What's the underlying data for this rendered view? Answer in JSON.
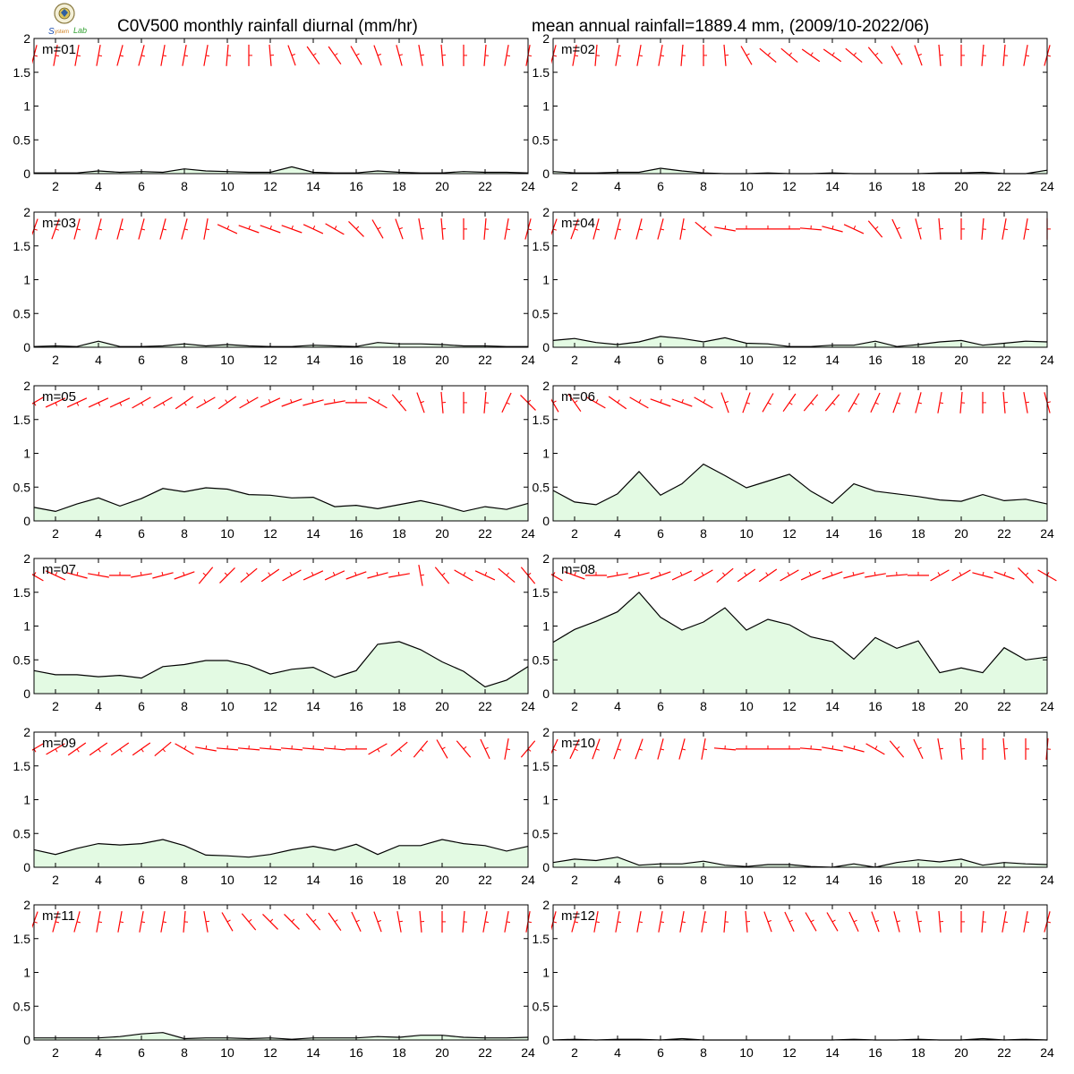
{
  "header": {
    "title_left": "C0V500 monthly rainfall diurnal (mm/hr)",
    "title_right": "mean annual rainfall=1889.4 mm, (2009/10-2022/06)",
    "logo_text": "Lab"
  },
  "colors": {
    "rain_line": "#000000",
    "rain_fill": "#e3fae3",
    "wind_barb": "#ff0000",
    "axis": "#000000"
  },
  "chart_data": [
    {
      "type": "area",
      "label": "m=01",
      "x": [
        1,
        2,
        3,
        4,
        5,
        6,
        7,
        8,
        9,
        10,
        11,
        12,
        13,
        14,
        15,
        16,
        17,
        18,
        19,
        20,
        21,
        22,
        23,
        24
      ],
      "values": [
        0.01,
        0.01,
        0.01,
        0.04,
        0.02,
        0.03,
        0.02,
        0.07,
        0.04,
        0.03,
        0.02,
        0.02,
        0.1,
        0.02,
        0.01,
        0.01,
        0.04,
        0.02,
        0.01,
        0.01,
        0.03,
        0.02,
        0.02,
        0.01
      ],
      "ylim": [
        0,
        2
      ],
      "xlim": [
        1,
        24
      ],
      "xticks": [
        2,
        4,
        6,
        8,
        10,
        12,
        14,
        16,
        18,
        20,
        22,
        24
      ],
      "yticks": [
        0,
        0.5,
        1,
        1.5,
        2
      ],
      "wind_dir": [
        15,
        10,
        10,
        10,
        15,
        15,
        10,
        10,
        10,
        5,
        0,
        355,
        340,
        325,
        325,
        330,
        340,
        345,
        350,
        355,
        0,
        5,
        10,
        10
      ]
    },
    {
      "type": "area",
      "label": "m=02",
      "x": [
        1,
        2,
        3,
        4,
        5,
        6,
        7,
        8,
        9,
        10,
        11,
        12,
        13,
        14,
        15,
        16,
        17,
        18,
        19,
        20,
        21,
        22,
        23,
        24
      ],
      "values": [
        0.03,
        0.01,
        0.01,
        0.02,
        0.02,
        0.08,
        0.04,
        0.01,
        0.0,
        0.0,
        0.01,
        0.0,
        0.0,
        0.01,
        0.0,
        0.0,
        0.0,
        0.0,
        0.01,
        0.01,
        0.02,
        0.0,
        0.0,
        0.05
      ],
      "ylim": [
        0,
        2
      ],
      "xlim": [
        1,
        24
      ],
      "xticks": [
        2,
        4,
        6,
        8,
        10,
        12,
        14,
        16,
        18,
        20,
        22,
        24
      ],
      "yticks": [
        0,
        0.5,
        1,
        1.5,
        2
      ],
      "wind_dir": [
        15,
        10,
        5,
        10,
        10,
        10,
        5,
        0,
        355,
        330,
        310,
        310,
        305,
        305,
        310,
        320,
        330,
        340,
        355,
        0,
        5,
        5,
        10,
        15
      ]
    },
    {
      "type": "area",
      "label": "m=03",
      "x": [
        1,
        2,
        3,
        4,
        5,
        6,
        7,
        8,
        9,
        10,
        11,
        12,
        13,
        14,
        15,
        16,
        17,
        18,
        19,
        20,
        21,
        22,
        23,
        24
      ],
      "values": [
        0.01,
        0.02,
        0.01,
        0.09,
        0.01,
        0.01,
        0.02,
        0.05,
        0.02,
        0.04,
        0.02,
        0.01,
        0.01,
        0.03,
        0.02,
        0.01,
        0.07,
        0.05,
        0.05,
        0.04,
        0.02,
        0.02,
        0.01,
        0.01
      ],
      "ylim": [
        0,
        2
      ],
      "xlim": [
        1,
        24
      ],
      "xticks": [
        2,
        4,
        6,
        8,
        10,
        12,
        14,
        16,
        18,
        20,
        22,
        24
      ],
      "yticks": [
        0,
        0.5,
        1,
        1.5,
        2
      ],
      "wind_dir": [
        20,
        20,
        15,
        15,
        15,
        15,
        15,
        15,
        10,
        295,
        290,
        290,
        290,
        295,
        300,
        315,
        330,
        340,
        350,
        355,
        0,
        5,
        10,
        15
      ]
    },
    {
      "type": "area",
      "label": "m=04",
      "x": [
        1,
        2,
        3,
        4,
        5,
        6,
        7,
        8,
        9,
        10,
        11,
        12,
        13,
        14,
        15,
        16,
        17,
        18,
        19,
        20,
        21,
        22,
        23,
        24
      ],
      "values": [
        0.1,
        0.13,
        0.07,
        0.04,
        0.08,
        0.16,
        0.13,
        0.08,
        0.14,
        0.06,
        0.05,
        0.01,
        0.01,
        0.03,
        0.03,
        0.09,
        0.01,
        0.04,
        0.08,
        0.1,
        0.03,
        0.06,
        0.09,
        0.08
      ],
      "ylim": [
        0,
        2
      ],
      "xlim": [
        1,
        24
      ],
      "xticks": [
        2,
        4,
        6,
        8,
        10,
        12,
        14,
        16,
        18,
        20,
        22,
        24
      ],
      "yticks": [
        0,
        0.5,
        1,
        1.5,
        2
      ],
      "wind_dir": [
        20,
        20,
        15,
        15,
        15,
        15,
        10,
        310,
        280,
        270,
        270,
        270,
        275,
        285,
        295,
        320,
        335,
        345,
        355,
        0,
        5,
        10,
        10,
        0
      ]
    },
    {
      "type": "area",
      "label": "m=05",
      "x": [
        1,
        2,
        3,
        4,
        5,
        6,
        7,
        8,
        9,
        10,
        11,
        12,
        13,
        14,
        15,
        16,
        17,
        18,
        19,
        20,
        21,
        22,
        23,
        24
      ],
      "values": [
        0.2,
        0.14,
        0.25,
        0.34,
        0.22,
        0.33,
        0.48,
        0.43,
        0.49,
        0.47,
        0.39,
        0.38,
        0.34,
        0.35,
        0.21,
        0.23,
        0.18,
        0.24,
        0.3,
        0.23,
        0.14,
        0.21,
        0.17,
        0.26
      ],
      "ylim": [
        0,
        2
      ],
      "xlim": [
        1,
        24
      ],
      "xticks": [
        2,
        4,
        6,
        8,
        10,
        12,
        14,
        16,
        18,
        20,
        22,
        24
      ],
      "yticks": [
        0,
        0.5,
        1,
        1.5,
        2
      ],
      "wind_dir": [
        60,
        65,
        65,
        65,
        65,
        60,
        60,
        55,
        240,
        235,
        240,
        245,
        250,
        255,
        260,
        270,
        300,
        320,
        340,
        355,
        360,
        5,
        25,
        315
      ]
    },
    {
      "type": "area",
      "label": "m=06",
      "x": [
        1,
        2,
        3,
        4,
        5,
        6,
        7,
        8,
        9,
        10,
        11,
        12,
        13,
        14,
        15,
        16,
        17,
        18,
        19,
        20,
        21,
        22,
        23,
        24
      ],
      "values": [
        0.45,
        0.28,
        0.24,
        0.4,
        0.73,
        0.38,
        0.55,
        0.84,
        0.67,
        0.49,
        0.59,
        0.69,
        0.44,
        0.26,
        0.55,
        0.44,
        0.4,
        0.36,
        0.31,
        0.29,
        0.39,
        0.3,
        0.32,
        0.25
      ],
      "ylim": [
        0,
        2
      ],
      "xlim": [
        1,
        24
      ],
      "xticks": [
        2,
        4,
        6,
        8,
        10,
        12,
        14,
        16,
        18,
        20,
        22,
        24
      ],
      "yticks": [
        0,
        0.5,
        1,
        1.5,
        2
      ],
      "wind_dir": [
        330,
        325,
        300,
        305,
        300,
        290,
        290,
        300,
        340,
        20,
        30,
        35,
        40,
        40,
        30,
        25,
        20,
        15,
        10,
        5,
        0,
        355,
        350,
        345
      ]
    },
    {
      "type": "area",
      "label": "m=07",
      "x": [
        1,
        2,
        3,
        4,
        5,
        6,
        7,
        8,
        9,
        10,
        11,
        12,
        13,
        14,
        15,
        16,
        17,
        18,
        19,
        20,
        21,
        22,
        23,
        24
      ],
      "values": [
        0.34,
        0.28,
        0.28,
        0.25,
        0.27,
        0.23,
        0.4,
        0.43,
        0.49,
        0.49,
        0.42,
        0.29,
        0.36,
        0.39,
        0.24,
        0.34,
        0.73,
        0.77,
        0.65,
        0.47,
        0.33,
        0.1,
        0.2,
        0.4
      ],
      "ylim": [
        0,
        2
      ],
      "xlim": [
        1,
        24
      ],
      "xticks": [
        2,
        4,
        6,
        8,
        10,
        12,
        14,
        16,
        18,
        20,
        22,
        24
      ],
      "yticks": [
        0,
        0.5,
        1,
        1.5,
        2
      ],
      "wind_dir": [
        300,
        295,
        285,
        280,
        270,
        260,
        255,
        250,
        220,
        225,
        230,
        235,
        240,
        245,
        245,
        250,
        255,
        260,
        350,
        320,
        300,
        295,
        310,
        320
      ]
    },
    {
      "type": "area",
      "label": "m=08",
      "x": [
        1,
        2,
        3,
        4,
        5,
        6,
        7,
        8,
        9,
        10,
        11,
        12,
        13,
        14,
        15,
        16,
        17,
        18,
        19,
        20,
        21,
        22,
        23,
        24
      ],
      "values": [
        0.76,
        0.95,
        1.07,
        1.21,
        1.5,
        1.13,
        0.94,
        1.06,
        1.27,
        0.94,
        1.1,
        1.02,
        0.84,
        0.77,
        0.51,
        0.83,
        0.67,
        0.78,
        0.31,
        0.38,
        0.31,
        0.68,
        0.5,
        0.54
      ],
      "ylim": [
        0,
        2
      ],
      "xlim": [
        1,
        24
      ],
      "xticks": [
        2,
        4,
        6,
        8,
        10,
        12,
        14,
        16,
        18,
        20,
        22,
        24
      ],
      "yticks": [
        0,
        0.5,
        1,
        1.5,
        2
      ],
      "wind_dir": [
        300,
        290,
        270,
        260,
        255,
        250,
        245,
        240,
        230,
        235,
        235,
        240,
        245,
        250,
        255,
        260,
        265,
        270,
        240,
        240,
        285,
        290,
        315,
        300
      ]
    },
    {
      "type": "area",
      "label": "m=09",
      "x": [
        1,
        2,
        3,
        4,
        5,
        6,
        7,
        8,
        9,
        10,
        11,
        12,
        13,
        14,
        15,
        16,
        17,
        18,
        19,
        20,
        21,
        22,
        23,
        24
      ],
      "values": [
        0.26,
        0.19,
        0.28,
        0.35,
        0.33,
        0.35,
        0.41,
        0.32,
        0.18,
        0.17,
        0.15,
        0.19,
        0.26,
        0.31,
        0.25,
        0.34,
        0.19,
        0.32,
        0.32,
        0.41,
        0.35,
        0.32,
        0.24,
        0.31
      ],
      "ylim": [
        0,
        2
      ],
      "xlim": [
        1,
        24
      ],
      "xticks": [
        2,
        4,
        6,
        8,
        10,
        12,
        14,
        16,
        18,
        20,
        22,
        24
      ],
      "yticks": [
        0,
        0.5,
        1,
        1.5,
        2
      ],
      "wind_dir": [
        60,
        60,
        55,
        55,
        55,
        55,
        50,
        300,
        280,
        275,
        275,
        275,
        275,
        275,
        275,
        270,
        60,
        50,
        40,
        330,
        320,
        335,
        10,
        40
      ]
    },
    {
      "type": "area",
      "label": "m=10",
      "x": [
        1,
        2,
        3,
        4,
        5,
        6,
        7,
        8,
        9,
        10,
        11,
        12,
        13,
        14,
        15,
        16,
        17,
        18,
        19,
        20,
        21,
        22,
        23,
        24
      ],
      "values": [
        0.07,
        0.12,
        0.1,
        0.15,
        0.03,
        0.05,
        0.05,
        0.09,
        0.03,
        0.01,
        0.04,
        0.04,
        0.01,
        0.0,
        0.05,
        0.0,
        0.07,
        0.11,
        0.08,
        0.12,
        0.03,
        0.07,
        0.05,
        0.04
      ],
      "ylim": [
        0,
        2
      ],
      "xlim": [
        1,
        24
      ],
      "xticks": [
        2,
        4,
        6,
        8,
        10,
        12,
        14,
        16,
        18,
        20,
        22,
        24
      ],
      "yticks": [
        0,
        0.5,
        1,
        1.5,
        2
      ],
      "wind_dir": [
        25,
        25,
        20,
        20,
        20,
        15,
        15,
        10,
        275,
        270,
        270,
        270,
        275,
        280,
        285,
        300,
        320,
        335,
        350,
        355,
        0,
        355,
        0,
        5
      ]
    },
    {
      "type": "area",
      "label": "m=11",
      "x": [
        1,
        2,
        3,
        4,
        5,
        6,
        7,
        8,
        9,
        10,
        11,
        12,
        13,
        14,
        15,
        16,
        17,
        18,
        19,
        20,
        21,
        22,
        23,
        24
      ],
      "values": [
        0.03,
        0.03,
        0.03,
        0.03,
        0.05,
        0.09,
        0.11,
        0.02,
        0.03,
        0.03,
        0.02,
        0.03,
        0.01,
        0.03,
        0.03,
        0.03,
        0.05,
        0.04,
        0.07,
        0.07,
        0.04,
        0.03,
        0.03,
        0.04
      ],
      "ylim": [
        0,
        2
      ],
      "xlim": [
        1,
        24
      ],
      "xticks": [
        2,
        4,
        6,
        8,
        10,
        12,
        14,
        16,
        18,
        20,
        22,
        24
      ],
      "yticks": [
        0,
        0.5,
        1,
        1.5,
        2
      ],
      "wind_dir": [
        20,
        15,
        15,
        10,
        10,
        10,
        10,
        5,
        350,
        330,
        320,
        315,
        315,
        320,
        325,
        335,
        340,
        350,
        355,
        0,
        5,
        10,
        10,
        10
      ]
    },
    {
      "type": "area",
      "label": "m=12",
      "x": [
        1,
        2,
        3,
        4,
        5,
        6,
        7,
        8,
        9,
        10,
        11,
        12,
        13,
        14,
        15,
        16,
        17,
        18,
        19,
        20,
        21,
        22,
        23,
        24
      ],
      "values": [
        0.0,
        0.01,
        0.0,
        0.01,
        0.01,
        0.0,
        0.02,
        0.0,
        0.0,
        0.0,
        0.0,
        0.0,
        0.0,
        0.0,
        0.01,
        0.0,
        0.0,
        0.01,
        0.0,
        0.0,
        0.02,
        0.0,
        0.01,
        0.0
      ],
      "ylim": [
        0,
        2
      ],
      "xlim": [
        1,
        24
      ],
      "xticks": [
        2,
        4,
        6,
        8,
        10,
        12,
        14,
        16,
        18,
        20,
        22,
        24
      ],
      "yticks": [
        0,
        0.5,
        1,
        1.5,
        2
      ],
      "wind_dir": [
        15,
        15,
        10,
        10,
        10,
        10,
        10,
        10,
        5,
        355,
        340,
        335,
        330,
        330,
        335,
        340,
        345,
        350,
        355,
        0,
        5,
        10,
        10,
        15
      ]
    }
  ]
}
